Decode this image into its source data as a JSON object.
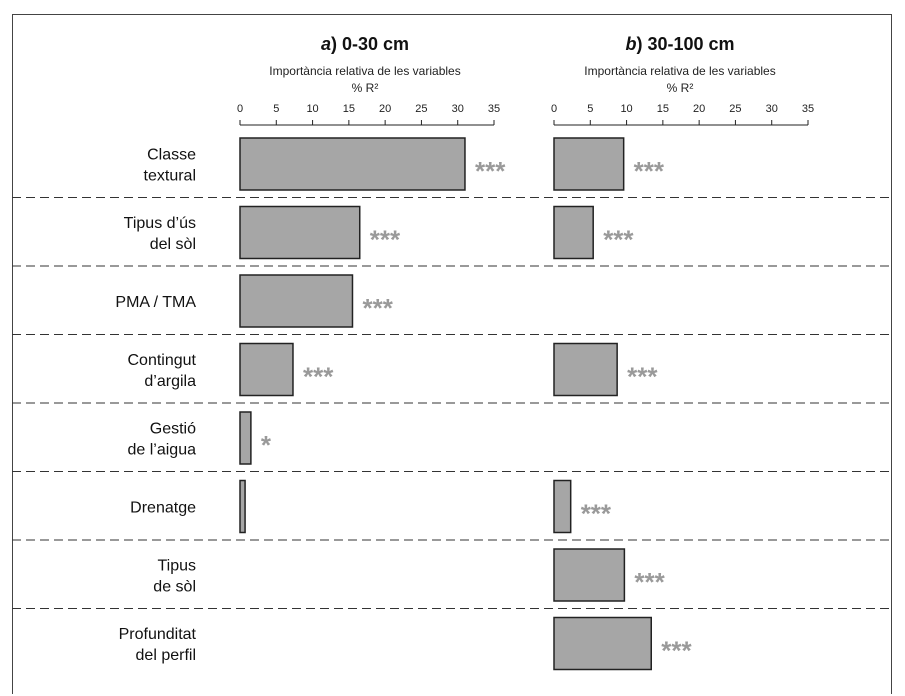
{
  "chart_data": [
    {
      "type": "bar",
      "orientation": "horizontal",
      "title_prefix": "a",
      "title_rest": ") 0-30 cm",
      "axis_title": "Importància relativa de les variables",
      "axis_unit": "% R²",
      "xlim": [
        0,
        35
      ],
      "ticks": [
        "0",
        "5",
        "10",
        "15",
        "20",
        "25",
        "30",
        "35"
      ],
      "categories": [
        {
          "label": [
            "Classe",
            "textural"
          ],
          "value": 31,
          "significance": "***"
        },
        {
          "label": [
            "Tipus d’ús",
            "del sòl"
          ],
          "value": 16.5,
          "significance": "***"
        },
        {
          "label": [
            "PMA / TMA"
          ],
          "value": 15.5,
          "significance": "***"
        },
        {
          "label": [
            "Contingut",
            "d’argila"
          ],
          "value": 7.3,
          "significance": "***"
        },
        {
          "label": [
            "Gestió",
            "de l’aigua"
          ],
          "value": 1.5,
          "significance": "*"
        },
        {
          "label": [
            "Drenatge"
          ],
          "value": 0.7,
          "significance": ""
        },
        {
          "label": [
            "Tipus",
            "de sòl"
          ],
          "value": null,
          "significance": ""
        },
        {
          "label": [
            "Profunditat",
            "del perfil"
          ],
          "value": null,
          "significance": ""
        }
      ]
    },
    {
      "type": "bar",
      "orientation": "horizontal",
      "title_prefix": "b",
      "title_rest": ") 30-100 cm",
      "axis_title": "Importància relativa de les variables",
      "axis_unit": "% R²",
      "xlim": [
        0,
        35
      ],
      "ticks": [
        "0",
        "5",
        "10",
        "15",
        "20",
        "25",
        "30",
        "35"
      ],
      "values": [
        {
          "value": 9.6,
          "significance": "***"
        },
        {
          "value": 5.4,
          "significance": "***"
        },
        {
          "value": null,
          "significance": ""
        },
        {
          "value": 8.7,
          "significance": "***"
        },
        {
          "value": null,
          "significance": ""
        },
        {
          "value": 2.3,
          "significance": "***"
        },
        {
          "value": 9.7,
          "significance": "***"
        },
        {
          "value": 13.4,
          "significance": "***"
        }
      ]
    }
  ],
  "colors": {
    "bar_fill": "#a6a6a6",
    "bar_stroke": "#222222",
    "stars": "#9a9a9a",
    "separator": "#333333"
  }
}
